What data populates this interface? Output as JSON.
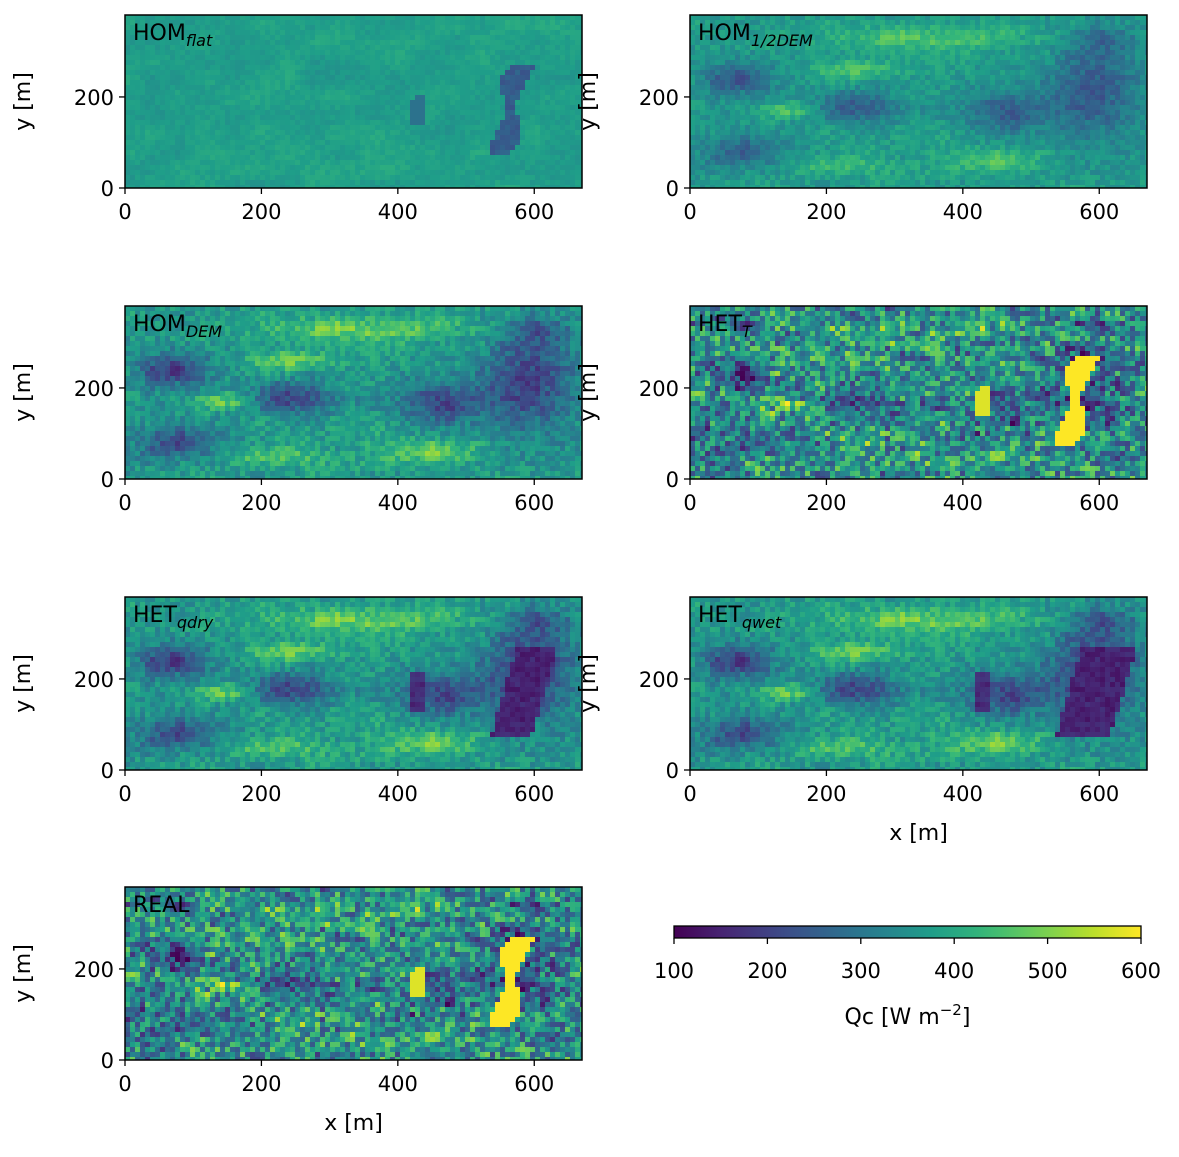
{
  "chart_data": {
    "type": "heatmap",
    "colormap": "viridis",
    "x_tick_labels": [
      "0",
      "200",
      "400",
      "600"
    ],
    "y_tick_labels": [
      "0",
      "200"
    ],
    "x_ticks": [
      0,
      200,
      400,
      600
    ],
    "y_ticks": [
      0,
      200
    ],
    "xlim": [
      0,
      670
    ],
    "ylim": [
      0,
      380
    ],
    "ylabel": "y [m]",
    "xlabel": "x [m]",
    "panels": [
      {
        "id": "hom-flat",
        "label_main": "HOM",
        "label_sub": "flat",
        "show_xlabel": false,
        "style": "flat"
      },
      {
        "id": "hom-half-dem",
        "label_main": "HOM",
        "label_sub": "1/2DEM",
        "show_xlabel": false,
        "style": "half"
      },
      {
        "id": "hom-dem",
        "label_main": "HOM",
        "label_sub": "DEM",
        "show_xlabel": false,
        "style": "dem"
      },
      {
        "id": "het-t",
        "label_main": "HET",
        "label_sub": "T",
        "show_xlabel": false,
        "style": "het"
      },
      {
        "id": "het-qdry",
        "label_main": "HET",
        "label_sub": "qdry",
        "show_xlabel": false,
        "style": "qdry"
      },
      {
        "id": "het-qwet",
        "label_main": "HET",
        "label_sub": "qwet",
        "show_xlabel": true,
        "style": "qwet"
      },
      {
        "id": "real",
        "label_main": "REAL",
        "label_sub": "",
        "show_xlabel": true,
        "style": "real"
      }
    ],
    "colorbar": {
      "label_main": "Qc [W m",
      "label_exp": "−2",
      "label_end": "]",
      "min": 100,
      "max": 600,
      "ticks": [
        100,
        200,
        300,
        400,
        500,
        600
      ],
      "tick_labels": [
        "100",
        "200",
        "300",
        "400",
        "500",
        "600"
      ]
    }
  }
}
